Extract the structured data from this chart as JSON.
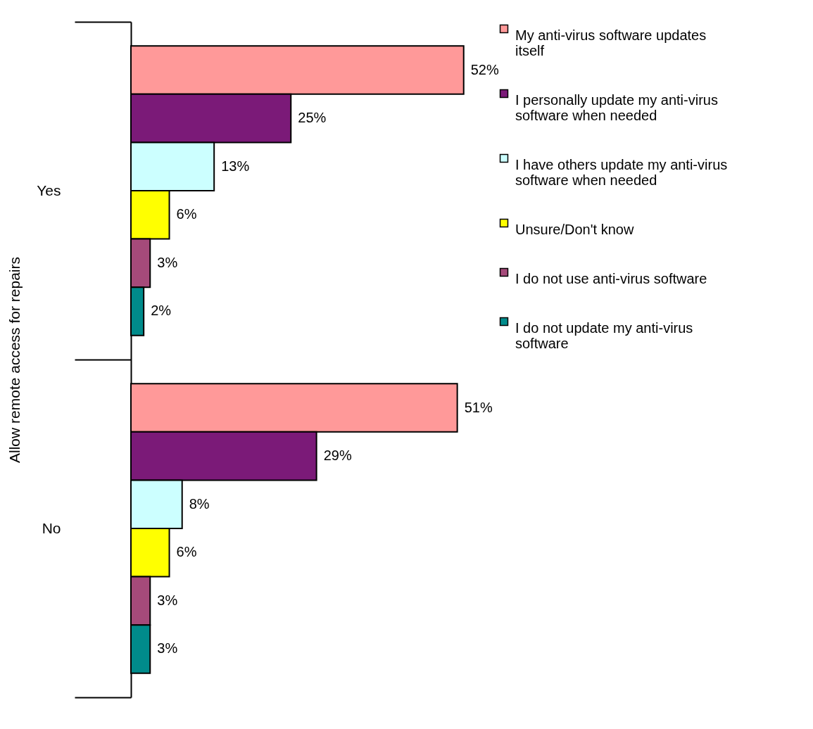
{
  "chart_data": {
    "type": "bar",
    "orientation": "horizontal",
    "ylabel": "Allow remote access for repairs",
    "categories": [
      "Yes",
      "No"
    ],
    "series": [
      {
        "name": "My anti-virus software updates itself",
        "color": "#ff9999",
        "values": [
          52,
          51
        ],
        "value_labels": [
          "52%",
          "51%"
        ]
      },
      {
        "name": "I personally update my anti-virus software when needed",
        "color": "#7b1a78",
        "values": [
          25,
          29
        ],
        "value_labels": [
          "25%",
          "29%"
        ]
      },
      {
        "name": "I have others update my anti-virus software when needed",
        "color": "#ccffff",
        "values": [
          13,
          8
        ],
        "value_labels": [
          "13%",
          "8%"
        ]
      },
      {
        "name": "Unsure/Don't know",
        "color": "#ffff00",
        "values": [
          6,
          6
        ],
        "value_labels": [
          "6%",
          "6%"
        ]
      },
      {
        "name": "I do not use anti-virus software",
        "color": "#a54a7a",
        "values": [
          3,
          3
        ],
        "value_labels": [
          "3%",
          "3%"
        ]
      },
      {
        "name": "I do not update my anti-virus software",
        "color": "#008b8b",
        "values": [
          2,
          3
        ],
        "value_labels": [
          "2%",
          "3%"
        ]
      }
    ],
    "legend": "right"
  }
}
